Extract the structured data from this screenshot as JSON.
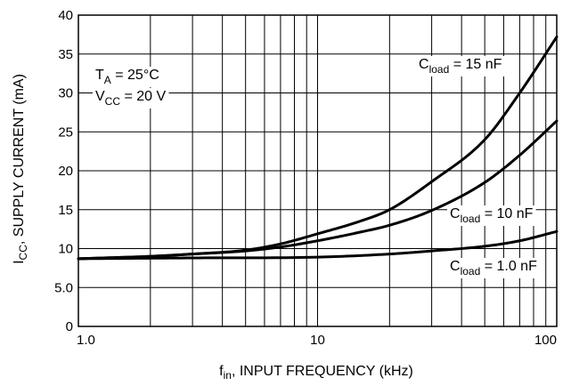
{
  "chart_data": {
    "type": "line",
    "title": "",
    "x_scale": "log",
    "xlim": [
      1,
      100
    ],
    "ylim": [
      0,
      40
    ],
    "grid": true,
    "xlabel": {
      "main": "f",
      "sub": "in",
      "rest": ", INPUT FREQUENCY (kHz)"
    },
    "ylabel": {
      "main": "I",
      "sub": "CC",
      "rest": ", SUPPLY CURRENT (mA)"
    },
    "x_ticks": [
      {
        "value": 1,
        "label": "1.0"
      },
      {
        "value": 10,
        "label": "10"
      },
      {
        "value": 100,
        "label": "100"
      }
    ],
    "y_ticks": [
      {
        "value": 0,
        "label": "0"
      },
      {
        "value": 5,
        "label": "5.0"
      },
      {
        "value": 10,
        "label": "10"
      },
      {
        "value": 15,
        "label": "15"
      },
      {
        "value": 20,
        "label": "20"
      },
      {
        "value": 25,
        "label": "25"
      },
      {
        "value": 30,
        "label": "30"
      },
      {
        "value": 35,
        "label": "35"
      },
      {
        "value": 40,
        "label": "40"
      }
    ],
    "conditions": [
      {
        "main": "T",
        "sub": "A",
        "rest": " = 25°C"
      },
      {
        "main": "V",
        "sub": "CC",
        "rest": " = 20 V"
      }
    ],
    "series": [
      {
        "name": {
          "main": "C",
          "sub": "load",
          "rest": " = 15 nF"
        },
        "points": [
          [
            1,
            8.7
          ],
          [
            2,
            9.0
          ],
          [
            3,
            9.3
          ],
          [
            5,
            9.8
          ],
          [
            7,
            10.6
          ],
          [
            10,
            11.9
          ],
          [
            15,
            13.5
          ],
          [
            20,
            15.0
          ],
          [
            30,
            18.6
          ],
          [
            50,
            24.0
          ],
          [
            70,
            30.0
          ],
          [
            100,
            37.2
          ]
        ]
      },
      {
        "name": {
          "main": "C",
          "sub": "load",
          "rest": " = 10 nF"
        },
        "points": [
          [
            1,
            8.7
          ],
          [
            2,
            9.0
          ],
          [
            3,
            9.3
          ],
          [
            5,
            9.7
          ],
          [
            7,
            10.2
          ],
          [
            10,
            11.0
          ],
          [
            15,
            12.1
          ],
          [
            20,
            13.0
          ],
          [
            30,
            14.9
          ],
          [
            50,
            18.5
          ],
          [
            70,
            22.0
          ],
          [
            100,
            26.4
          ]
        ]
      },
      {
        "name": {
          "main": "C",
          "sub": "load",
          "rest": " = 1.0 nF"
        },
        "points": [
          [
            1,
            8.7
          ],
          [
            3,
            8.8
          ],
          [
            10,
            8.9
          ],
          [
            20,
            9.3
          ],
          [
            30,
            9.7
          ],
          [
            50,
            10.3
          ],
          [
            70,
            11.0
          ],
          [
            100,
            12.2
          ]
        ]
      }
    ]
  }
}
